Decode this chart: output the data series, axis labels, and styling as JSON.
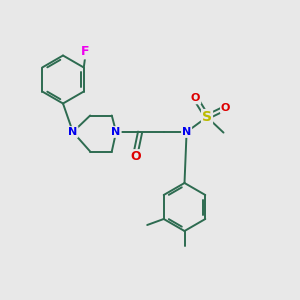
{
  "background_color": "#e8e8e8",
  "atom_colors": {
    "C": "#2d6b50",
    "N": "#0000ee",
    "O": "#dd0000",
    "F": "#ee00ee",
    "S": "#bbbb00",
    "H": "#000000"
  },
  "bond_color": "#2d6b50",
  "font_size_atom": 8,
  "fig_size": [
    3.0,
    3.0
  ],
  "dpi": 100
}
